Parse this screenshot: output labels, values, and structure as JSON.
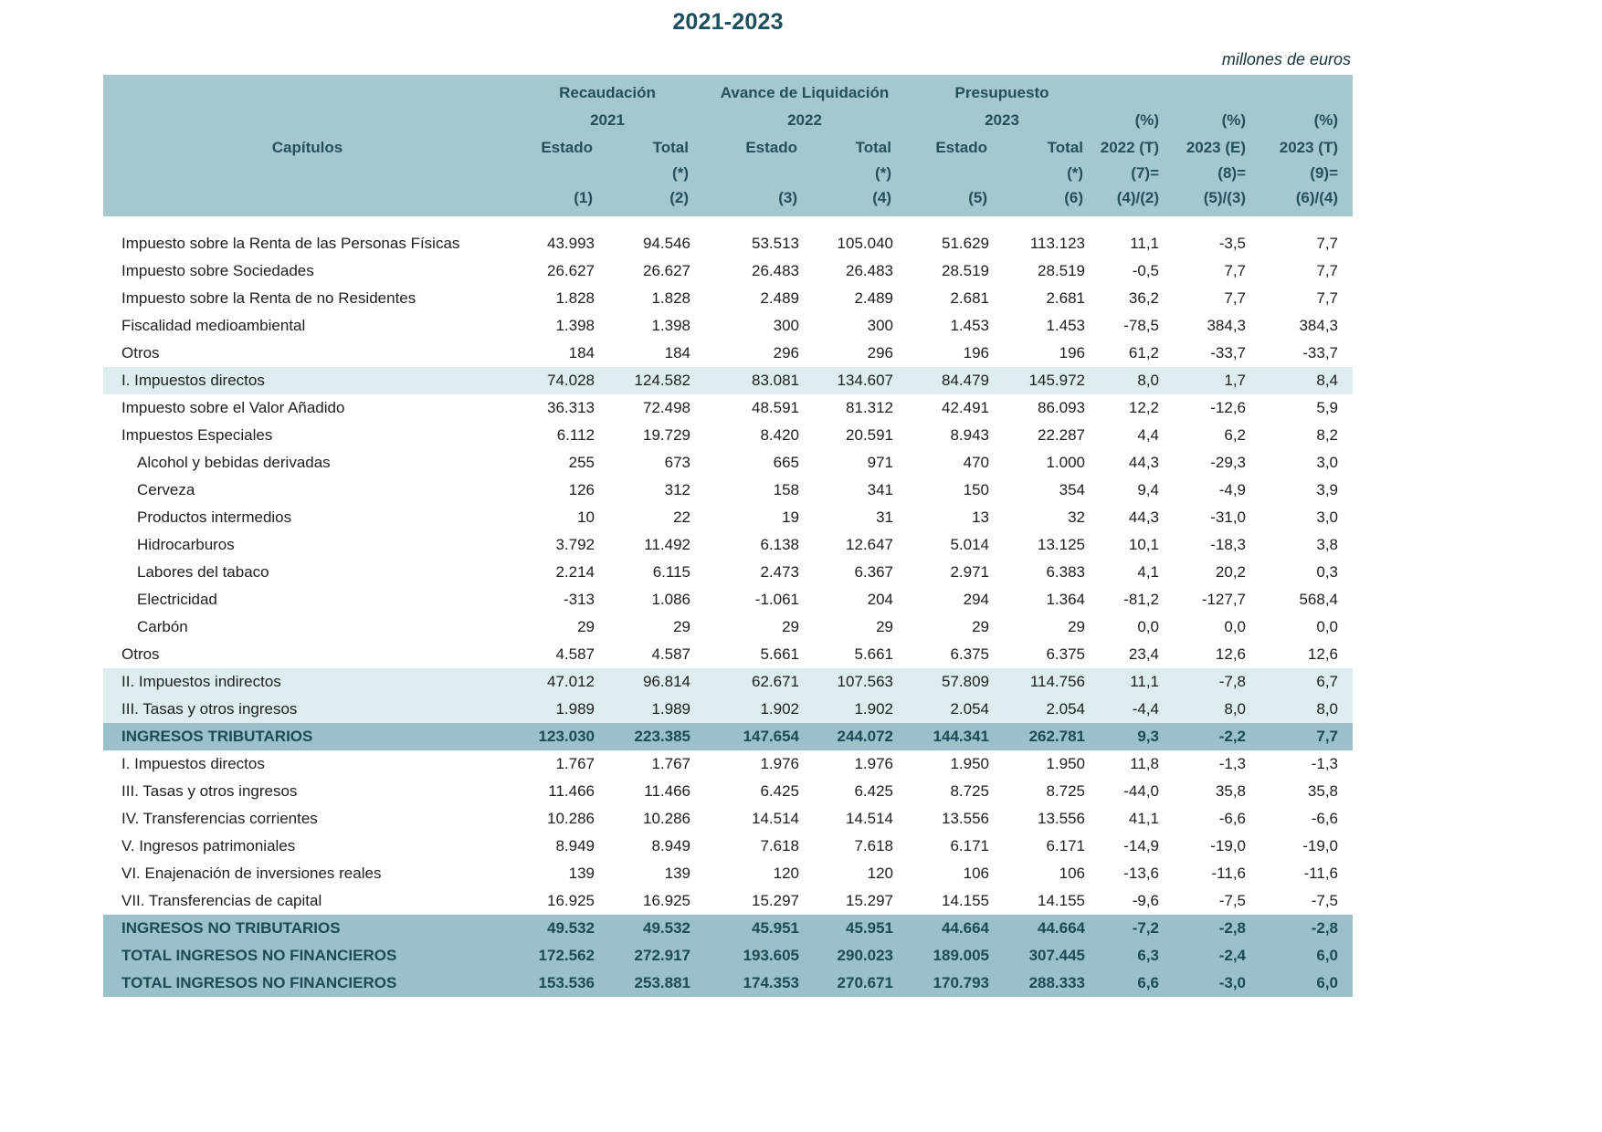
{
  "page": {
    "title": "2021-2023",
    "unit_note": "millones de euros"
  },
  "table": {
    "capitulos_label": "Capítulos",
    "col_groups": [
      {
        "label": "Recaudación",
        "year": "2021"
      },
      {
        "label": "Avance de Liquidación",
        "year": "2022"
      },
      {
        "label": "Presupuesto",
        "year": "2023"
      }
    ],
    "sub_headers": {
      "estado": "Estado",
      "total": "Total",
      "asterisk": "(*)",
      "col_numbers": [
        "(1)",
        "(2)",
        "(3)",
        "(4)",
        "(5)",
        "(6)"
      ]
    },
    "pct_columns": [
      {
        "pct": "(%)",
        "line2": "2022 (T)",
        "line3": "(7)=",
        "line4": "(4)/(2)"
      },
      {
        "pct": "(%)",
        "line2": "2023 (E)",
        "line3": "(8)=",
        "line4": "(5)/(3)"
      },
      {
        "pct": "(%)",
        "line2": "2023 (T)",
        "line3": "(9)=",
        "line4": "(6)/(4)"
      }
    ],
    "rows": [
      {
        "label": "Impuesto sobre la Renta de las Personas Físicas",
        "style": "item",
        "values": [
          "43.993",
          "94.546",
          "53.513",
          "105.040",
          "51.629",
          "113.123",
          "11,1",
          "-3,5",
          "7,7"
        ]
      },
      {
        "label": "Impuesto sobre Sociedades",
        "style": "item",
        "values": [
          "26.627",
          "26.627",
          "26.483",
          "26.483",
          "28.519",
          "28.519",
          "-0,5",
          "7,7",
          "7,7"
        ]
      },
      {
        "label": "Impuesto sobre la Renta de no Residentes",
        "style": "item",
        "values": [
          "1.828",
          "1.828",
          "2.489",
          "2.489",
          "2.681",
          "2.681",
          "36,2",
          "7,7",
          "7,7"
        ]
      },
      {
        "label": "Fiscalidad medioambiental",
        "style": "item",
        "values": [
          "1.398",
          "1.398",
          "300",
          "300",
          "1.453",
          "1.453",
          "-78,5",
          "384,3",
          "384,3"
        ]
      },
      {
        "label": "Otros",
        "style": "item",
        "values": [
          "184",
          "184",
          "296",
          "296",
          "196",
          "196",
          "61,2",
          "-33,7",
          "-33,7"
        ]
      },
      {
        "label": "I. Impuestos directos",
        "style": "section",
        "values": [
          "74.028",
          "124.582",
          "83.081",
          "134.607",
          "84.479",
          "145.972",
          "8,0",
          "1,7",
          "8,4"
        ]
      },
      {
        "label": "Impuesto sobre el Valor Añadido",
        "style": "item",
        "values": [
          "36.313",
          "72.498",
          "48.591",
          "81.312",
          "42.491",
          "86.093",
          "12,2",
          "-12,6",
          "5,9"
        ]
      },
      {
        "label": "Impuestos Especiales",
        "style": "item",
        "values": [
          "6.112",
          "19.729",
          "8.420",
          "20.591",
          "8.943",
          "22.287",
          "4,4",
          "6,2",
          "8,2"
        ]
      },
      {
        "label": "Alcohol y bebidas derivadas",
        "style": "subitem",
        "values": [
          "255",
          "673",
          "665",
          "971",
          "470",
          "1.000",
          "44,3",
          "-29,3",
          "3,0"
        ]
      },
      {
        "label": "Cerveza",
        "style": "subitem",
        "values": [
          "126",
          "312",
          "158",
          "341",
          "150",
          "354",
          "9,4",
          "-4,9",
          "3,9"
        ]
      },
      {
        "label": "Productos intermedios",
        "style": "subitem",
        "values": [
          "10",
          "22",
          "19",
          "31",
          "13",
          "32",
          "44,3",
          "-31,0",
          "3,0"
        ]
      },
      {
        "label": "Hidrocarburos",
        "style": "subitem",
        "values": [
          "3.792",
          "11.492",
          "6.138",
          "12.647",
          "5.014",
          "13.125",
          "10,1",
          "-18,3",
          "3,8"
        ]
      },
      {
        "label": "Labores del tabaco",
        "style": "subitem",
        "values": [
          "2.214",
          "6.115",
          "2.473",
          "6.367",
          "2.971",
          "6.383",
          "4,1",
          "20,2",
          "0,3"
        ]
      },
      {
        "label": "Electricidad",
        "style": "subitem",
        "values": [
          "-313",
          "1.086",
          "-1.061",
          "204",
          "294",
          "1.364",
          "-81,2",
          "-127,7",
          "568,4"
        ]
      },
      {
        "label": "Carbón",
        "style": "subitem",
        "values": [
          "29",
          "29",
          "29",
          "29",
          "29",
          "29",
          "0,0",
          "0,0",
          "0,0"
        ]
      },
      {
        "label": "Otros",
        "style": "item",
        "values": [
          "4.587",
          "4.587",
          "5.661",
          "5.661",
          "6.375",
          "6.375",
          "23,4",
          "12,6",
          "12,6"
        ]
      },
      {
        "label": "II. Impuestos indirectos",
        "style": "section",
        "values": [
          "47.012",
          "96.814",
          "62.671",
          "107.563",
          "57.809",
          "114.756",
          "11,1",
          "-7,8",
          "6,7"
        ]
      },
      {
        "label": "III. Tasas y otros ingresos",
        "style": "section",
        "values": [
          "1.989",
          "1.989",
          "1.902",
          "1.902",
          "2.054",
          "2.054",
          "-4,4",
          "8,0",
          "8,0"
        ]
      },
      {
        "label": "INGRESOS TRIBUTARIOS",
        "style": "total",
        "values": [
          "123.030",
          "223.385",
          "147.654",
          "244.072",
          "144.341",
          "262.781",
          "9,3",
          "-2,2",
          "7,7"
        ]
      },
      {
        "label": "I. Impuestos directos",
        "style": "item",
        "values": [
          "1.767",
          "1.767",
          "1.976",
          "1.976",
          "1.950",
          "1.950",
          "11,8",
          "-1,3",
          "-1,3"
        ]
      },
      {
        "label": "III. Tasas y otros ingresos",
        "style": "item",
        "values": [
          "11.466",
          "11.466",
          "6.425",
          "6.425",
          "8.725",
          "8.725",
          "-44,0",
          "35,8",
          "35,8"
        ]
      },
      {
        "label": "IV. Transferencias corrientes",
        "style": "item",
        "values": [
          "10.286",
          "10.286",
          "14.514",
          "14.514",
          "13.556",
          "13.556",
          "41,1",
          "-6,6",
          "-6,6"
        ]
      },
      {
        "label": "V. Ingresos patrimoniales",
        "style": "item",
        "values": [
          "8.949",
          "8.949",
          "7.618",
          "7.618",
          "6.171",
          "6.171",
          "-14,9",
          "-19,0",
          "-19,0"
        ]
      },
      {
        "label": "VI. Enajenación de inversiones reales",
        "style": "item",
        "values": [
          "139",
          "139",
          "120",
          "120",
          "106",
          "106",
          "-13,6",
          "-11,6",
          "-11,6"
        ]
      },
      {
        "label": "VII. Transferencias de capital",
        "style": "item",
        "values": [
          "16.925",
          "16.925",
          "15.297",
          "15.297",
          "14.155",
          "14.155",
          "-9,6",
          "-7,5",
          "-7,5"
        ]
      },
      {
        "label": "INGRESOS NO TRIBUTARIOS",
        "style": "total",
        "values": [
          "49.532",
          "49.532",
          "45.951",
          "45.951",
          "44.664",
          "44.664",
          "-7,2",
          "-2,8",
          "-2,8"
        ]
      },
      {
        "label": "TOTAL INGRESOS NO FINANCIEROS",
        "style": "total",
        "values": [
          "172.562",
          "272.917",
          "193.605",
          "290.023",
          "189.005",
          "307.445",
          "6,3",
          "-2,4",
          "6,0"
        ]
      },
      {
        "label": "TOTAL INGRESOS NO FINANCIEROS",
        "style": "total",
        "values": [
          "153.536",
          "253.881",
          "174.353",
          "270.671",
          "170.793",
          "288.333",
          "6,6",
          "-3,0",
          "6,0"
        ]
      }
    ]
  }
}
